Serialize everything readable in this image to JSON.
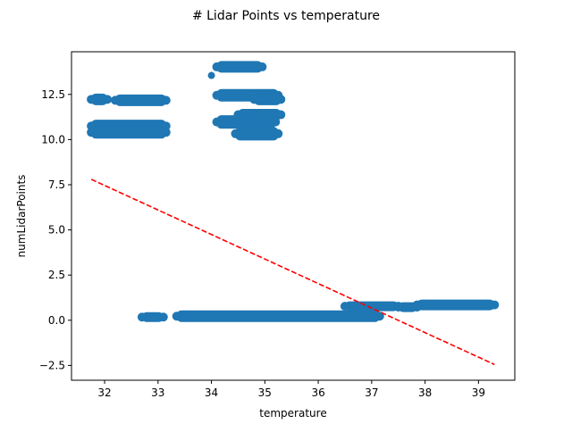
{
  "chart_data": {
    "type": "scatter",
    "title": "# Lidar Points vs temperature",
    "xlabel": "temperature",
    "ylabel": "numLidarPoints",
    "xlim": [
      31.38,
      39.68
    ],
    "ylim": [
      -3.32,
      14.86
    ],
    "x_ticks": [
      32,
      33,
      34,
      35,
      36,
      37,
      38,
      39
    ],
    "y_ticks": [
      -2.5,
      0.0,
      2.5,
      5.0,
      7.5,
      10.0,
      12.5
    ],
    "y_tick_labels": [
      "−2.5",
      "0.0",
      "2.5",
      "5.0",
      "7.5",
      "10.0",
      "12.5"
    ],
    "grid": false,
    "series": [
      {
        "mark": "scatter",
        "color": "#1f77b4",
        "bands": [
          {
            "x": [
              31.75,
              32.05
            ],
            "y": [
              12.15,
              12.3
            ]
          },
          {
            "x": [
              32.2,
              33.15
            ],
            "y": [
              12.1,
              12.25
            ]
          },
          {
            "x": [
              31.75,
              33.15
            ],
            "y": [
              10.65,
              10.85
            ]
          },
          {
            "x": [
              31.75,
              33.15
            ],
            "y": [
              10.3,
              10.5
            ]
          },
          {
            "x": [
              32.7,
              33.1
            ],
            "y": [
              0.15,
              0.2
            ]
          },
          {
            "x": [
              33.35,
              37.15
            ],
            "y": [
              0.15,
              0.3
            ]
          },
          {
            "x": [
              36.5,
              37.5
            ],
            "y": [
              0.75,
              0.8
            ]
          },
          {
            "x": [
              37.5,
              37.85
            ],
            "y": [
              0.7,
              0.75
            ]
          },
          {
            "x": [
              37.85,
              39.3
            ],
            "y": [
              0.8,
              0.9
            ]
          },
          {
            "x": [
              34.1,
              34.95
            ],
            "y": [
              13.95,
              14.1
            ]
          },
          {
            "x": [
              34.1,
              35.25
            ],
            "y": [
              12.35,
              12.55
            ]
          },
          {
            "x": [
              34.8,
              35.3
            ],
            "y": [
              12.15,
              12.3
            ]
          },
          {
            "x": [
              34.1,
              35.2
            ],
            "y": [
              10.85,
              11.1
            ]
          },
          {
            "x": [
              34.5,
              35.3
            ],
            "y": [
              11.3,
              11.45
            ]
          },
          {
            "x": [
              34.45,
              35.25
            ],
            "y": [
              10.2,
              10.45
            ]
          }
        ],
        "points": [
          {
            "x": 34.0,
            "y": 13.55
          }
        ]
      },
      {
        "mark": "line",
        "style": "dashed",
        "color": "#ff0000",
        "points": [
          {
            "x": 31.75,
            "y": 7.8
          },
          {
            "x": 39.3,
            "y": -2.45
          }
        ]
      }
    ]
  }
}
